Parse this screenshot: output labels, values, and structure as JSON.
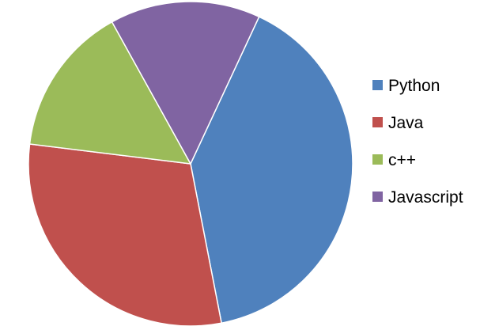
{
  "chart_data": {
    "type": "pie",
    "title": "",
    "categories": [
      "Python",
      "Java",
      "c++",
      "Javascript"
    ],
    "values": [
      40,
      30,
      15,
      15
    ],
    "colors": [
      "#4F81BD",
      "#C0504D",
      "#9BBB59",
      "#8064A2"
    ],
    "start_angle_deg": 25,
    "direction": "clockwise",
    "legend_placement": "right",
    "slice_labels_shown": false
  }
}
